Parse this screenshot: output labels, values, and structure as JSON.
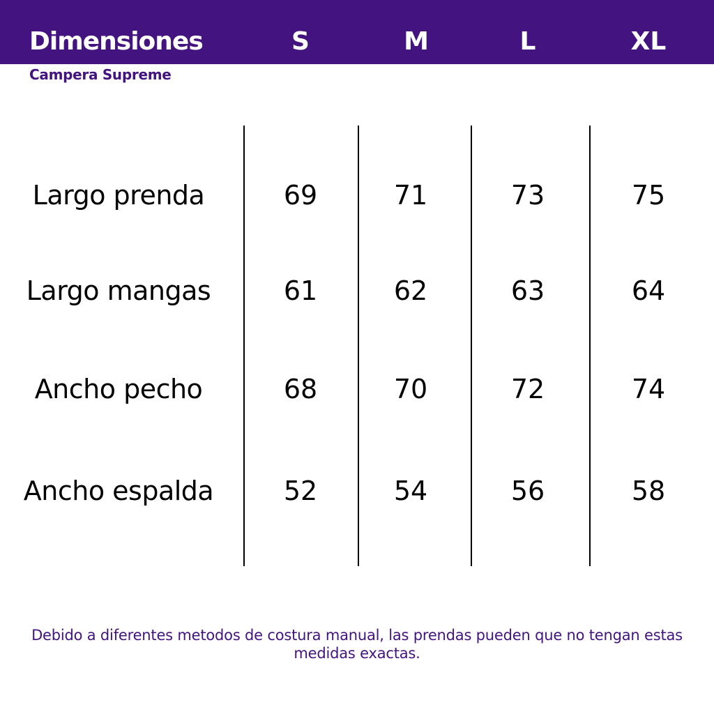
{
  "header": {
    "title": "Dimensiones",
    "sizes": [
      "S",
      "M",
      "L",
      "XL"
    ],
    "background_color": "#43137f"
  },
  "subtitle": "Campera Supreme",
  "table": {
    "rows": [
      {
        "label": "Largo prenda",
        "values": [
          "69",
          "71",
          "73",
          "75"
        ]
      },
      {
        "label": "Largo mangas",
        "values": [
          "61",
          "62",
          "63",
          "64"
        ]
      },
      {
        "label": "Ancho pecho",
        "values": [
          "68",
          "70",
          "72",
          "74"
        ]
      },
      {
        "label": "Ancho espalda",
        "values": [
          "52",
          "54",
          "56",
          "58"
        ]
      }
    ]
  },
  "footer_note": "Debido a diferentes metodos de costura manual, las prendas pueden que no tengan estas medidas exactas."
}
